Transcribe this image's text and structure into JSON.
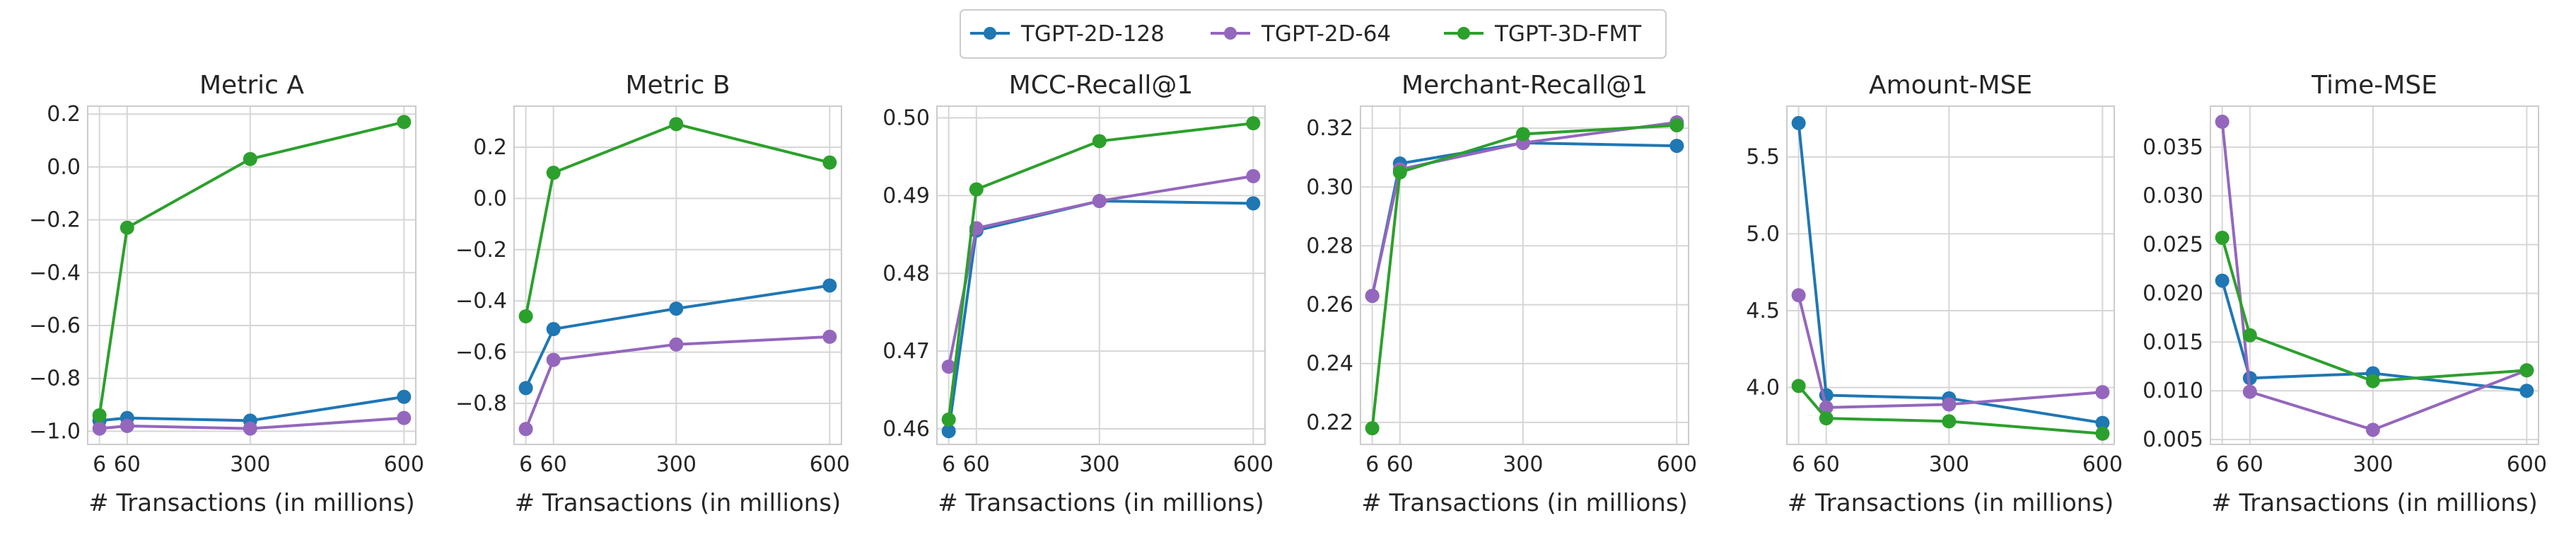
{
  "legend": {
    "entries": [
      {
        "name": "TGPT-2D-128",
        "color": "#1f77b4"
      },
      {
        "name": "TGPT-2D-64",
        "color": "#9467bd"
      },
      {
        "name": "TGPT-3D-FMT",
        "color": "#2ca02c"
      }
    ]
  },
  "chart_data": [
    {
      "type": "line",
      "title": "Metric A",
      "xlabel": "# Transactions (in millions)",
      "ylabel": "",
      "x": [
        6,
        60,
        300,
        600
      ],
      "xticks": [
        "6",
        "60",
        "300",
        "600"
      ],
      "xlim": [
        -17,
        623
      ],
      "ylim": [
        -1.05,
        0.23
      ],
      "yticks": [
        -1.0,
        -0.8,
        -0.6,
        -0.4,
        -0.2,
        0.0,
        0.2
      ],
      "ytick_labels": [
        "−1.0",
        "−0.8",
        "−0.6",
        "−0.4",
        "−0.2",
        "0.0",
        "0.2"
      ],
      "series": [
        {
          "name": "TGPT-2D-128",
          "values": [
            -0.96,
            -0.95,
            -0.96,
            -0.87
          ]
        },
        {
          "name": "TGPT-2D-64",
          "values": [
            -0.99,
            -0.98,
            -0.99,
            -0.95
          ]
        },
        {
          "name": "TGPT-3D-FMT",
          "values": [
            -0.94,
            -0.23,
            0.03,
            0.17
          ]
        }
      ]
    },
    {
      "type": "line",
      "title": "Metric B",
      "xlabel": "# Transactions (in millions)",
      "ylabel": "",
      "x": [
        6,
        60,
        300,
        600
      ],
      "xticks": [
        "6",
        "60",
        "300",
        "600"
      ],
      "xlim": [
        -17,
        623
      ],
      "ylim": [
        -0.96,
        0.36
      ],
      "yticks": [
        -0.8,
        -0.6,
        -0.4,
        -0.2,
        0.0,
        0.2
      ],
      "ytick_labels": [
        "−0.8",
        "−0.6",
        "−0.4",
        "−0.2",
        "0.0",
        "0.2"
      ],
      "series": [
        {
          "name": "TGPT-2D-128",
          "values": [
            -0.74,
            -0.51,
            -0.43,
            -0.34
          ]
        },
        {
          "name": "TGPT-2D-64",
          "values": [
            -0.9,
            -0.63,
            -0.57,
            -0.54
          ]
        },
        {
          "name": "TGPT-3D-FMT",
          "values": [
            -0.46,
            0.1,
            0.29,
            0.14
          ]
        }
      ]
    },
    {
      "type": "line",
      "title": "MCC-Recall@1",
      "xlabel": "# Transactions (in millions)",
      "ylabel": "",
      "x": [
        6,
        60,
        300,
        600
      ],
      "xticks": [
        "6",
        "60",
        "300",
        "600"
      ],
      "xlim": [
        -17,
        623
      ],
      "ylim": [
        0.458,
        0.5015
      ],
      "yticks": [
        0.46,
        0.47,
        0.48,
        0.49,
        0.5
      ],
      "ytick_labels": [
        "0.46",
        "0.47",
        "0.48",
        "0.49",
        "0.50"
      ],
      "series": [
        {
          "name": "TGPT-2D-128",
          "values": [
            0.4597,
            0.4855,
            0.4893,
            0.489
          ]
        },
        {
          "name": "TGPT-2D-64",
          "values": [
            0.468,
            0.4858,
            0.4893,
            0.4925
          ]
        },
        {
          "name": "TGPT-3D-FMT",
          "values": [
            0.4612,
            0.4908,
            0.497,
            0.4993
          ]
        }
      ]
    },
    {
      "type": "line",
      "title": "Merchant-Recall@1",
      "xlabel": "# Transactions (in millions)",
      "ylabel": "",
      "x": [
        6,
        60,
        300,
        600
      ],
      "xticks": [
        "6",
        "60",
        "300",
        "600"
      ],
      "xlim": [
        -17,
        623
      ],
      "ylim": [
        0.2125,
        0.3275
      ],
      "yticks": [
        0.22,
        0.24,
        0.26,
        0.28,
        0.3,
        0.32
      ],
      "ytick_labels": [
        "0.22",
        "0.24",
        "0.26",
        "0.28",
        "0.30",
        "0.32"
      ],
      "series": [
        {
          "name": "TGPT-2D-128",
          "values": [
            0.263,
            0.308,
            0.315,
            0.314
          ]
        },
        {
          "name": "TGPT-2D-64",
          "values": [
            0.263,
            0.306,
            0.315,
            0.322
          ]
        },
        {
          "name": "TGPT-3D-FMT",
          "values": [
            0.218,
            0.305,
            0.318,
            0.321
          ]
        }
      ]
    },
    {
      "type": "line",
      "title": "Amount-MSE",
      "xlabel": "# Transactions (in millions)",
      "ylabel": "",
      "x": [
        6,
        60,
        300,
        600
      ],
      "xticks": [
        "6",
        "60",
        "300",
        "600"
      ],
      "xlim": [
        -17,
        623
      ],
      "ylim": [
        3.63,
        5.83
      ],
      "yticks": [
        4.0,
        4.5,
        5.0,
        5.5
      ],
      "ytick_labels": [
        "4.0",
        "4.5",
        "5.0",
        "5.5"
      ],
      "series": [
        {
          "name": "TGPT-2D-128",
          "values": [
            5.72,
            3.95,
            3.93,
            3.77
          ]
        },
        {
          "name": "TGPT-2D-64",
          "values": [
            4.6,
            3.87,
            3.89,
            3.97
          ]
        },
        {
          "name": "TGPT-3D-FMT",
          "values": [
            4.01,
            3.8,
            3.78,
            3.7
          ]
        }
      ]
    },
    {
      "type": "line",
      "title": "Time-MSE",
      "xlabel": "# Transactions (in millions)",
      "ylabel": "",
      "x": [
        6,
        60,
        300,
        600
      ],
      "xticks": [
        "6",
        "60",
        "300",
        "600"
      ],
      "xlim": [
        -17,
        623
      ],
      "ylim": [
        0.0045,
        0.0392
      ],
      "yticks": [
        0.005,
        0.01,
        0.015,
        0.02,
        0.025,
        0.03,
        0.035
      ],
      "ytick_labels": [
        "0.005",
        "0.010",
        "0.015",
        "0.020",
        "0.025",
        "0.030",
        "0.035"
      ],
      "series": [
        {
          "name": "TGPT-2D-128",
          "values": [
            0.0213,
            0.0113,
            0.0118,
            0.01
          ]
        },
        {
          "name": "TGPT-2D-64",
          "values": [
            0.0376,
            0.0099,
            0.006,
            0.0121
          ]
        },
        {
          "name": "TGPT-3D-FMT",
          "values": [
            0.0257,
            0.0157,
            0.011,
            0.0121
          ]
        }
      ]
    }
  ]
}
